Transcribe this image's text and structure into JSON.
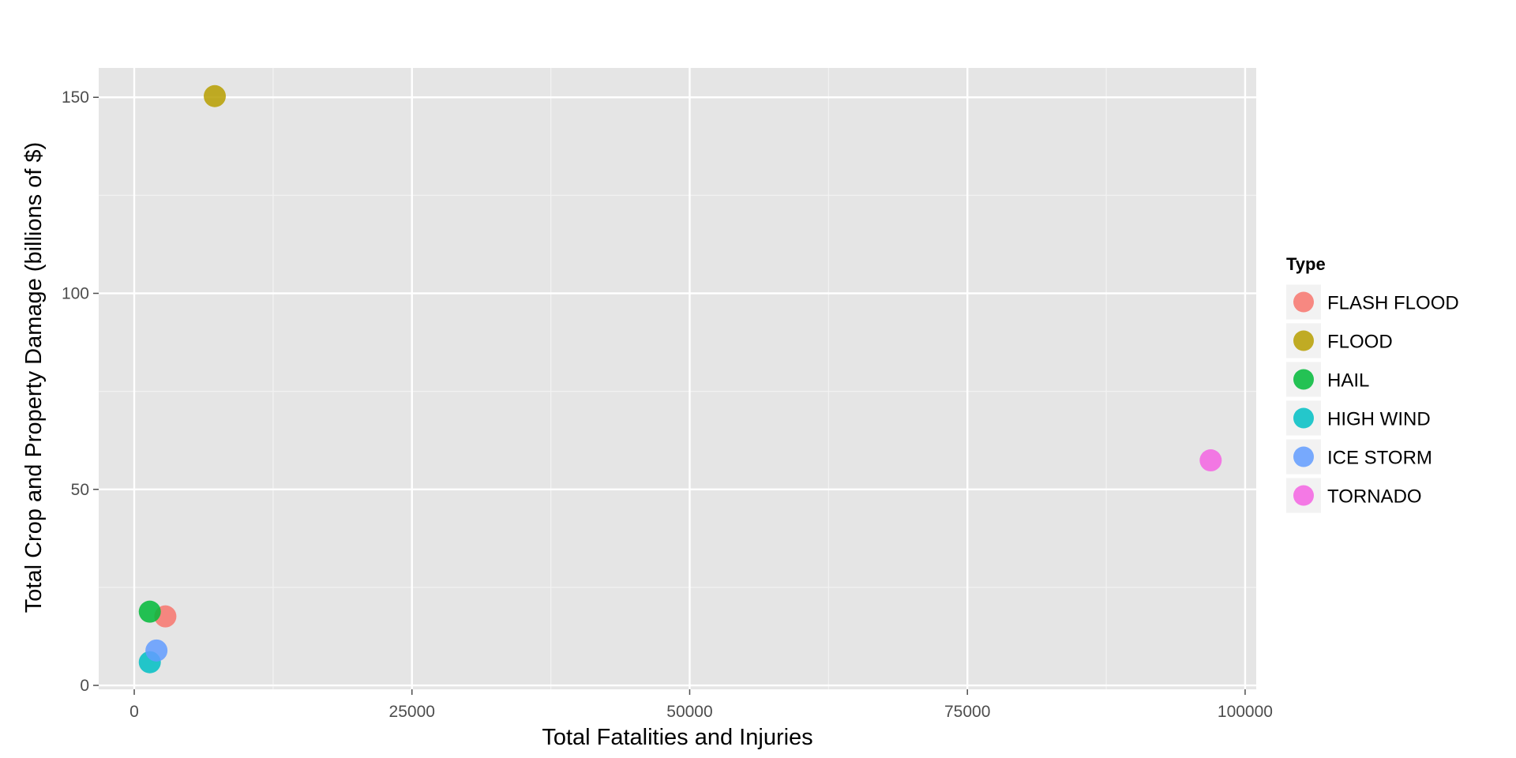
{
  "chart_data": {
    "type": "scatter",
    "title": "",
    "xlabel": "Total Fatalities and Injuries",
    "ylabel": "Total Crop and Property Damage (billions of $)",
    "xlim": [
      -3200,
      101000
    ],
    "ylim": [
      -1,
      157.5
    ],
    "x_ticks": [
      0,
      25000,
      50000,
      75000,
      100000
    ],
    "x_tick_labels": [
      "0",
      "25000",
      "50000",
      "75000",
      "100000"
    ],
    "y_ticks": [
      0,
      50,
      100,
      150
    ],
    "y_tick_labels": [
      "0",
      "50",
      "100",
      "150"
    ],
    "grid": true,
    "legend": {
      "title": "Type",
      "position": "right"
    },
    "series": [
      {
        "name": "FLASH FLOOD",
        "color": "#F8766D",
        "points": [
          {
            "x": 2800,
            "y": 17.6
          }
        ]
      },
      {
        "name": "FLOOD",
        "color": "#B79F00",
        "points": [
          {
            "x": 7250,
            "y": 150.3
          }
        ]
      },
      {
        "name": "HAIL",
        "color": "#00BA38",
        "points": [
          {
            "x": 1400,
            "y": 18.8
          }
        ]
      },
      {
        "name": "HIGH WIND",
        "color": "#00BFC4",
        "points": [
          {
            "x": 1400,
            "y": 5.9
          }
        ]
      },
      {
        "name": "ICE STORM",
        "color": "#619CFF",
        "points": [
          {
            "x": 2000,
            "y": 8.9
          }
        ]
      },
      {
        "name": "TORNADO",
        "color": "#F564E3",
        "points": [
          {
            "x": 96900,
            "y": 57.4
          }
        ]
      }
    ]
  }
}
